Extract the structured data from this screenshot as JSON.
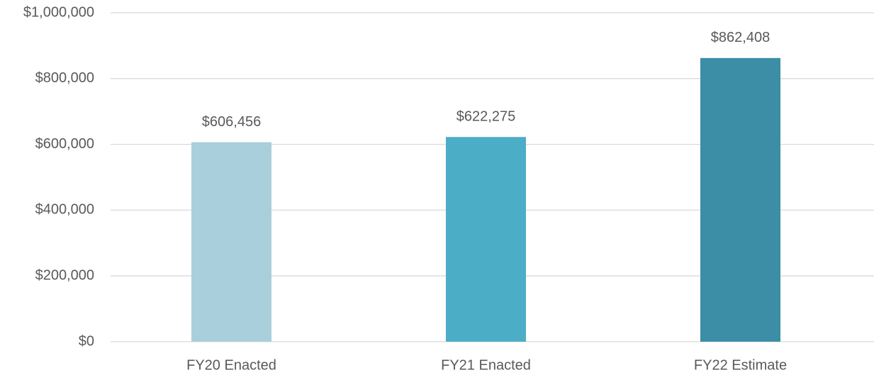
{
  "chart_data": {
    "type": "bar",
    "categories": [
      "FY20 Enacted",
      "FY21 Enacted",
      "FY22 Estimate"
    ],
    "values": [
      606456,
      622275,
      862408
    ],
    "value_labels": [
      "$606,456",
      "$622,275",
      "$862,408"
    ],
    "colors": [
      "#a9cfdc",
      "#4badc6",
      "#3b8ea5"
    ],
    "ylim": [
      0,
      1000000
    ],
    "yticks": [
      {
        "value": 0,
        "label": "$0"
      },
      {
        "value": 200000,
        "label": "$200,000"
      },
      {
        "value": 400000,
        "label": "$400,000"
      },
      {
        "value": 600000,
        "label": "$600,000"
      },
      {
        "value": 800000,
        "label": "$800,000"
      },
      {
        "value": 1000000,
        "label": "$1,000,000"
      }
    ],
    "grid": true
  }
}
